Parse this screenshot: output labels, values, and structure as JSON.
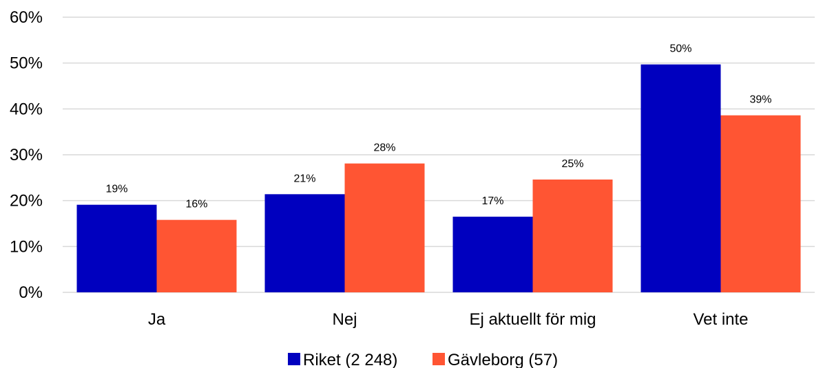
{
  "chart_data": {
    "type": "bar",
    "categories": [
      "Ja",
      "Nej",
      "Ej aktuellt för mig",
      "Vet inte"
    ],
    "series": [
      {
        "name": "Riket (2 248)",
        "values": [
          19,
          21,
          17,
          50
        ],
        "labels": [
          "19%",
          "21%",
          "17%",
          "50%"
        ],
        "color": "#0000BF"
      },
      {
        "name": "Gävleborg (57)",
        "values": [
          16,
          28,
          25,
          39
        ],
        "labels": [
          "16%",
          "28%",
          "25%",
          "39%"
        ],
        "color": "#FF5533"
      }
    ],
    "plotted_values": [
      [
        19.1,
        21.4,
        16.5,
        49.7
      ],
      [
        15.8,
        28.1,
        24.6,
        38.6
      ]
    ],
    "ylim": [
      0,
      60
    ],
    "yticks": [
      0,
      10,
      20,
      30,
      40,
      50,
      60
    ],
    "ytick_labels": [
      "0%",
      "10%",
      "20%",
      "30%",
      "40%",
      "50%",
      "60%"
    ],
    "grid": true,
    "gridline_color": "#D9D9D9",
    "legend_position": "bottom"
  }
}
